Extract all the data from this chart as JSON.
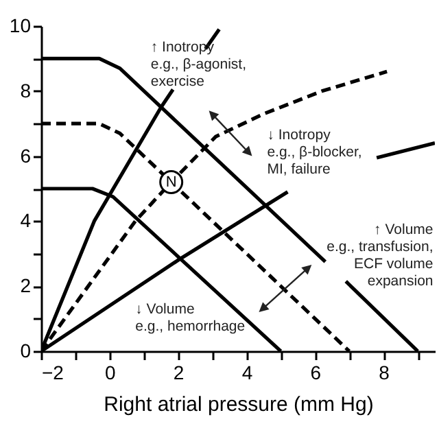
{
  "chart_data": {
    "type": "line",
    "xlabel": "Right atrial pressure (mm Hg)",
    "xlim": [
      -2,
      9.5
    ],
    "ylim": [
      0,
      10
    ],
    "xticks": [
      -2,
      {
        "value": -1,
        "label": null
      },
      0,
      {
        "value": 1,
        "label": null
      },
      2,
      {
        "value": 3,
        "label": null
      },
      4,
      {
        "value": 5,
        "label": null
      },
      6,
      {
        "value": 7,
        "label": null
      },
      8,
      {
        "value": 9,
        "label": null
      }
    ],
    "yticks": [
      0,
      {
        "value": 1,
        "label": null
      },
      2,
      {
        "value": 3,
        "label": null
      },
      4,
      {
        "value": 5,
        "label": null
      },
      6,
      {
        "value": 7,
        "label": null
      },
      8,
      {
        "value": 9,
        "label": null
      },
      10
    ],
    "grid": false,
    "marker": "none",
    "series": [
      {
        "color": "#000000",
        "line_style": "solid",
        "x": [
          -2,
          -0.3,
          0.3,
          6.3,
          6.6,
          6.9,
          9
        ],
        "values": [
          9,
          9,
          8.7,
          2.75,
          null,
          2.15,
          0
        ]
      },
      {
        "color": "#000000",
        "line_style": "dashed",
        "x": [
          -2,
          -0.3,
          0.3,
          7
        ],
        "values": [
          7,
          7,
          6.7,
          0
        ]
      },
      {
        "color": "#000000",
        "line_style": "solid",
        "x": [
          -2,
          -0.5,
          0.1,
          5
        ],
        "values": [
          5,
          5,
          4.75,
          0
        ]
      },
      {
        "color": "#000000",
        "line_style": "solid",
        "x": [
          -2,
          -0.45,
          1.5,
          1.85,
          2.2,
          2.8,
          3.2
        ],
        "values": [
          0,
          4,
          7.5,
          8.05,
          null,
          9.3,
          9.9
        ]
      },
      {
        "color": "#000000",
        "line_style": "dashed",
        "x": [
          -2,
          0.75,
          1.8,
          3.1,
          4.5,
          6.2,
          8.1
        ],
        "values": [
          0,
          4,
          5.2,
          6.6,
          7.3,
          8,
          8.6
        ]
      },
      {
        "color": "#000000",
        "line_style": "solid",
        "x": [
          -2,
          2,
          5.2,
          6.5,
          7.8,
          9.5
        ],
        "values": [
          0,
          2.8,
          4.9,
          null,
          5.95,
          6.4
        ]
      }
    ],
    "annotations": [
      {
        "text": "N",
        "x": 1.8,
        "y": 5.2
      },
      "↑ Inotropy\ne.g., β-agonist,\nexercise",
      "↓ Inotropy\ne.g., β-blocker,\nMI, failure",
      "↑ Volume\ne.g., transfusion,\nECF volume\nexpansion",
      "↓ Volume\ne.g., hemorrhage"
    ]
  }
}
